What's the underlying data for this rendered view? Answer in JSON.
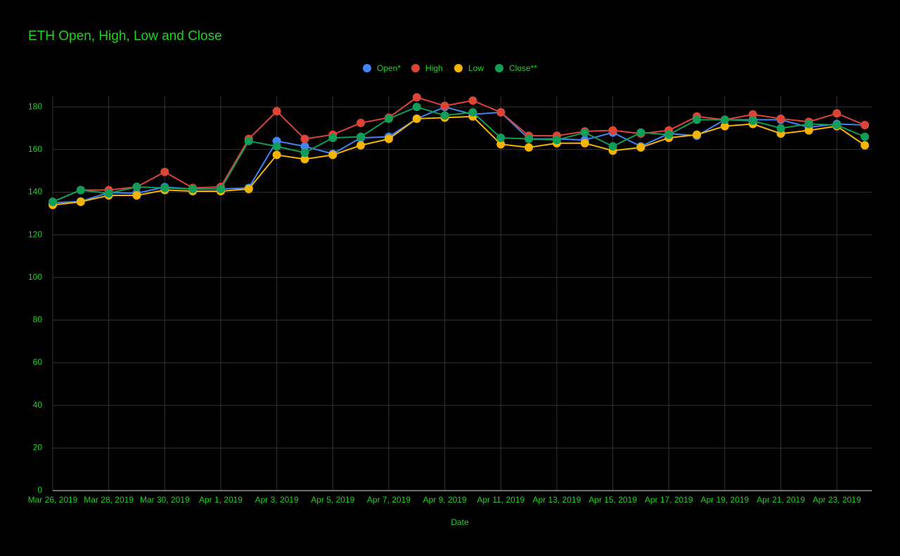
{
  "chart_data": {
    "type": "line",
    "title": "ETH Open, High, Low and Close",
    "x_label": "Date",
    "categories": [
      "Mar 26, 2019",
      null,
      "Mar 28, 2019",
      null,
      "Mar 30, 2019",
      null,
      "Apr 1, 2019",
      null,
      "Apr 3, 2019",
      null,
      "Apr 5, 2019",
      null,
      "Apr 7, 2019",
      null,
      "Apr 9, 2019",
      null,
      "Apr 11, 2019",
      null,
      "Apr 13, 2019",
      null,
      "Apr 15, 2019",
      null,
      "Apr 17, 2019",
      null,
      "Apr 19, 2019",
      null,
      "Apr 21, 2019",
      null,
      "Apr 23, 2019",
      null
    ],
    "series": [
      {
        "name": "Open*",
        "color": "#4285f4",
        "values": [
          135,
          135.7,
          139.8,
          139.5,
          142.4,
          141.5,
          141.5,
          142,
          164,
          161.5,
          158,
          165.5,
          166,
          174.5,
          180,
          176.5,
          177.5,
          165,
          165,
          164.5,
          168,
          161.5,
          167.5,
          166.5,
          174,
          174,
          174,
          170.5,
          172,
          171.5
        ]
      },
      {
        "name": "High",
        "color": "#db4437",
        "values": [
          135.5,
          141,
          141,
          142.5,
          149.5,
          142,
          142.5,
          165,
          178,
          165,
          167,
          172.5,
          175,
          184.5,
          180.5,
          183,
          177.5,
          166.5,
          166.5,
          168.5,
          169,
          167.5,
          169,
          175.5,
          174,
          176.5,
          174.5,
          173,
          177,
          171.5
        ]
      },
      {
        "name": "Low",
        "color": "#f4b400",
        "values": [
          134,
          135.5,
          138.5,
          138.5,
          141,
          140.5,
          140.5,
          141.5,
          157.5,
          155.5,
          157.5,
          162,
          165,
          174.5,
          175,
          175.5,
          162.5,
          161,
          163,
          163,
          159.5,
          161,
          165.5,
          167,
          171,
          172,
          167.5,
          169,
          171,
          162
        ]
      },
      {
        "name": "Close**",
        "color": "#0f9d58",
        "values": [
          135.5,
          141,
          139.5,
          142.5,
          142,
          141.5,
          141.5,
          164,
          161.5,
          158.5,
          165.5,
          166,
          174.5,
          180,
          176,
          177.5,
          165.5,
          165,
          164.5,
          168,
          161.5,
          168,
          167,
          174,
          174,
          173.5,
          170,
          172,
          171.5,
          166
        ]
      }
    ],
    "ylim": [
      0,
      185
    ],
    "yticks": [
      0,
      20,
      40,
      60,
      80,
      100,
      120,
      140,
      160,
      180
    ],
    "grid": true
  }
}
